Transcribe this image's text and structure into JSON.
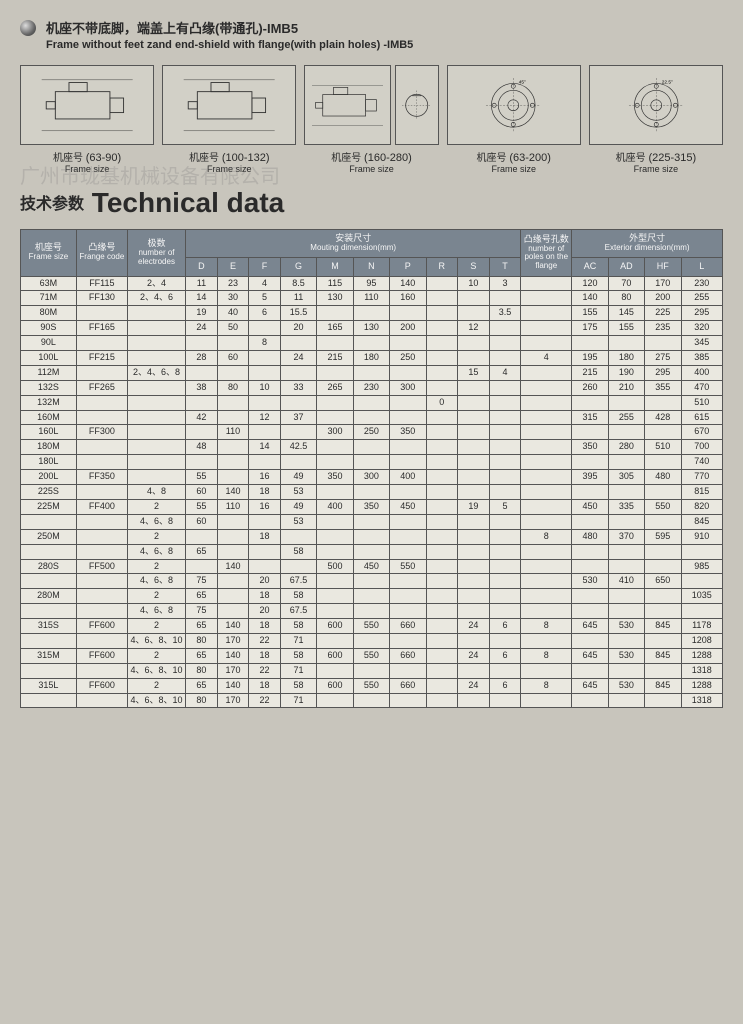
{
  "header": {
    "title_cn": "机座不带底脚，端盖上有凸缘(带通孔)-IMB5",
    "title_en": "Frame without feet zand end-shield with flange(with plain holes) -IMB5"
  },
  "diagrams": [
    {
      "label_cn": "机座号",
      "label_en": "Frame size",
      "range": "(63-90)",
      "type": "motor"
    },
    {
      "label_cn": "机座号",
      "label_en": "Frame size",
      "range": "(100-132)",
      "type": "motor"
    },
    {
      "label_cn": "机座号",
      "label_en": "Frame size",
      "range": "(160-280)",
      "type": "motor"
    },
    {
      "label_cn": "机座号",
      "label_en": "Frame size",
      "range": "(63-200)",
      "type": "flange",
      "angle": "45°"
    },
    {
      "label_cn": "机座号",
      "label_en": "Frame size",
      "range": "(225-315)",
      "type": "flange",
      "angle": "22.5°"
    }
  ],
  "tech_title_cn": "技术参数",
  "tech_title_en": "Technical data",
  "watermark": "广州市珑基机械设备有限公司",
  "table": {
    "header_groups": [
      {
        "cn": "机座号",
        "en": "Frame size"
      },
      {
        "cn": "凸缘号",
        "en": "Frange code"
      },
      {
        "cn": "极数",
        "en": "number of electrodes"
      },
      {
        "cn": "安装尺寸",
        "en": "Mouting dimension(mm)",
        "sub": [
          "D",
          "E",
          "F",
          "G",
          "M",
          "N",
          "P",
          "R",
          "S",
          "T"
        ]
      },
      {
        "cn": "凸缘号孔数",
        "en": "number of poles on the flange"
      },
      {
        "cn": "外型尺寸",
        "en": "Exterior dimension(mm)",
        "sub": [
          "AC",
          "AD",
          "HF",
          "L"
        ]
      }
    ],
    "cols": {
      "frame": 46,
      "frange": 42,
      "poles": 48,
      "D": 26,
      "E": 26,
      "F": 26,
      "G": 30,
      "M": 30,
      "N": 30,
      "P": 30,
      "R": 26,
      "S": 26,
      "T": 26,
      "flange_poles": 42,
      "AC": 30,
      "AD": 30,
      "HF": 30,
      "L": 34
    },
    "rows": [
      {
        "fs": "63M",
        "fc": "FF115",
        "pl": "2、4",
        "D": "11",
        "E": "23",
        "F": "4",
        "G": "8.5",
        "M": "115",
        "N": "95",
        "P": "140",
        "R": "",
        "S": "10",
        "T": "3",
        "fp": "",
        "AC": "120",
        "AD": "70",
        "HF": "170",
        "L": "230"
      },
      {
        "fs": "71M",
        "fc": "FF130",
        "pl": "2、4、6",
        "D": "14",
        "E": "30",
        "F": "5",
        "G": "11",
        "M": "130",
        "N": "110",
        "P": "160",
        "R": "",
        "S": "",
        "T": "",
        "fp": "",
        "AC": "140",
        "AD": "80",
        "HF": "200",
        "L": "255"
      },
      {
        "fs": "80M",
        "fc": "",
        "pl": "",
        "D": "19",
        "E": "40",
        "F": "6",
        "G": "15.5",
        "M": "",
        "N": "",
        "P": "",
        "R": "",
        "S": "",
        "T": "3.5",
        "fp": "",
        "AC": "155",
        "AD": "145",
        "HF": "225",
        "L": "295"
      },
      {
        "fs": "90S",
        "fc": "FF165",
        "pl": "",
        "D": "24",
        "E": "50",
        "F": "",
        "G": "20",
        "M": "165",
        "N": "130",
        "P": "200",
        "R": "",
        "S": "12",
        "T": "",
        "fp": "",
        "AC": "175",
        "AD": "155",
        "HF": "235",
        "L": "320"
      },
      {
        "fs": "90L",
        "fc": "",
        "pl": "",
        "D": "",
        "E": "",
        "F": "8",
        "G": "",
        "M": "",
        "N": "",
        "P": "",
        "R": "",
        "S": "",
        "T": "",
        "fp": "",
        "AC": "",
        "AD": "",
        "HF": "",
        "L": "345"
      },
      {
        "fs": "100L",
        "fc": "FF215",
        "pl": "",
        "D": "28",
        "E": "60",
        "F": "",
        "G": "24",
        "M": "215",
        "N": "180",
        "P": "250",
        "R": "",
        "S": "",
        "T": "",
        "fp": "4",
        "AC": "195",
        "AD": "180",
        "HF": "275",
        "L": "385"
      },
      {
        "fs": "112M",
        "fc": "",
        "pl": "2、4、6、8",
        "D": "",
        "E": "",
        "F": "",
        "G": "",
        "M": "",
        "N": "",
        "P": "",
        "R": "",
        "S": "15",
        "T": "4",
        "fp": "",
        "AC": "215",
        "AD": "190",
        "HF": "295",
        "L": "400"
      },
      {
        "fs": "132S",
        "fc": "FF265",
        "pl": "",
        "D": "38",
        "E": "80",
        "F": "10",
        "G": "33",
        "M": "265",
        "N": "230",
        "P": "300",
        "R": "",
        "S": "",
        "T": "",
        "fp": "",
        "AC": "260",
        "AD": "210",
        "HF": "355",
        "L": "470"
      },
      {
        "fs": "132M",
        "fc": "",
        "pl": "",
        "D": "",
        "E": "",
        "F": "",
        "G": "",
        "M": "",
        "N": "",
        "P": "",
        "R": "0",
        "S": "",
        "T": "",
        "fp": "",
        "AC": "",
        "AD": "",
        "HF": "",
        "L": "510"
      },
      {
        "fs": "160M",
        "fc": "",
        "pl": "",
        "D": "42",
        "E": "",
        "F": "12",
        "G": "37",
        "M": "",
        "N": "",
        "P": "",
        "R": "",
        "S": "",
        "T": "",
        "fp": "",
        "AC": "315",
        "AD": "255",
        "HF": "428",
        "L": "615"
      },
      {
        "fs": "160L",
        "fc": "FF300",
        "pl": "",
        "D": "",
        "E": "110",
        "F": "",
        "G": "",
        "M": "300",
        "N": "250",
        "P": "350",
        "R": "",
        "S": "",
        "T": "",
        "fp": "",
        "AC": "",
        "AD": "",
        "HF": "",
        "L": "670"
      },
      {
        "fs": "180M",
        "fc": "",
        "pl": "",
        "D": "48",
        "E": "",
        "F": "14",
        "G": "42.5",
        "M": "",
        "N": "",
        "P": "",
        "R": "",
        "S": "",
        "T": "",
        "fp": "",
        "AC": "350",
        "AD": "280",
        "HF": "510",
        "L": "700"
      },
      {
        "fs": "180L",
        "fc": "",
        "pl": "",
        "D": "",
        "E": "",
        "F": "",
        "G": "",
        "M": "",
        "N": "",
        "P": "",
        "R": "",
        "S": "",
        "T": "",
        "fp": "",
        "AC": "",
        "AD": "",
        "HF": "",
        "L": "740"
      },
      {
        "fs": "200L",
        "fc": "FF350",
        "pl": "",
        "D": "55",
        "E": "",
        "F": "16",
        "G": "49",
        "M": "350",
        "N": "300",
        "P": "400",
        "R": "",
        "S": "",
        "T": "",
        "fp": "",
        "AC": "395",
        "AD": "305",
        "HF": "480",
        "L": "770"
      },
      {
        "fs": "225S",
        "fc": "",
        "pl": "4、8",
        "D": "60",
        "E": "140",
        "F": "18",
        "G": "53",
        "M": "",
        "N": "",
        "P": "",
        "R": "",
        "S": "",
        "T": "",
        "fp": "",
        "AC": "",
        "AD": "",
        "HF": "",
        "L": "815"
      },
      {
        "fs": "225M",
        "fc": "FF400",
        "pl": "2",
        "D": "55",
        "E": "110",
        "F": "16",
        "G": "49",
        "M": "400",
        "N": "350",
        "P": "450",
        "R": "",
        "S": "19",
        "T": "5",
        "fp": "",
        "AC": "450",
        "AD": "335",
        "HF": "550",
        "L": "820"
      },
      {
        "fs": "",
        "fc": "",
        "pl": "4、6、8",
        "D": "60",
        "E": "",
        "F": "",
        "G": "53",
        "M": "",
        "N": "",
        "P": "",
        "R": "",
        "S": "",
        "T": "",
        "fp": "",
        "AC": "",
        "AD": "",
        "HF": "",
        "L": "845"
      },
      {
        "fs": "250M",
        "fc": "",
        "pl": "2",
        "D": "",
        "E": "",
        "F": "18",
        "G": "",
        "M": "",
        "N": "",
        "P": "",
        "R": "",
        "S": "",
        "T": "",
        "fp": "8",
        "AC": "480",
        "AD": "370",
        "HF": "595",
        "L": "910"
      },
      {
        "fs": "",
        "fc": "",
        "pl": "4、6、8",
        "D": "65",
        "E": "",
        "F": "",
        "G": "58",
        "M": "",
        "N": "",
        "P": "",
        "R": "",
        "S": "",
        "T": "",
        "fp": "",
        "AC": "",
        "AD": "",
        "HF": "",
        "L": ""
      },
      {
        "fs": "280S",
        "fc": "FF500",
        "pl": "2",
        "D": "",
        "E": "140",
        "F": "",
        "G": "",
        "M": "500",
        "N": "450",
        "P": "550",
        "R": "",
        "S": "",
        "T": "",
        "fp": "",
        "AC": "",
        "AD": "",
        "HF": "",
        "L": "985"
      },
      {
        "fs": "",
        "fc": "",
        "pl": "4、6、8",
        "D": "75",
        "E": "",
        "F": "20",
        "G": "67.5",
        "M": "",
        "N": "",
        "P": "",
        "R": "",
        "S": "",
        "T": "",
        "fp": "",
        "AC": "530",
        "AD": "410",
        "HF": "650",
        "L": ""
      },
      {
        "fs": "280M",
        "fc": "",
        "pl": "2",
        "D": "65",
        "E": "",
        "F": "18",
        "G": "58",
        "M": "",
        "N": "",
        "P": "",
        "R": "",
        "S": "",
        "T": "",
        "fp": "",
        "AC": "",
        "AD": "",
        "HF": "",
        "L": "1035"
      },
      {
        "fs": "",
        "fc": "",
        "pl": "4、6、8",
        "D": "75",
        "E": "",
        "F": "20",
        "G": "67.5",
        "M": "",
        "N": "",
        "P": "",
        "R": "",
        "S": "",
        "T": "",
        "fp": "",
        "AC": "",
        "AD": "",
        "HF": "",
        "L": ""
      },
      {
        "fs": "315S",
        "fc": "FF600",
        "pl": "2",
        "D": "65",
        "E": "140",
        "F": "18",
        "G": "58",
        "M": "600",
        "N": "550",
        "P": "660",
        "R": "",
        "S": "24",
        "T": "6",
        "fp": "8",
        "AC": "645",
        "AD": "530",
        "HF": "845",
        "L": "1178"
      },
      {
        "fs": "",
        "fc": "",
        "pl": "4、6、8、10",
        "D": "80",
        "E": "170",
        "F": "22",
        "G": "71",
        "M": "",
        "N": "",
        "P": "",
        "R": "",
        "S": "",
        "T": "",
        "fp": "",
        "AC": "",
        "AD": "",
        "HF": "",
        "L": "1208"
      },
      {
        "fs": "315M",
        "fc": "FF600",
        "pl": "2",
        "D": "65",
        "E": "140",
        "F": "18",
        "G": "58",
        "M": "600",
        "N": "550",
        "P": "660",
        "R": "",
        "S": "24",
        "T": "6",
        "fp": "8",
        "AC": "645",
        "AD": "530",
        "HF": "845",
        "L": "1288"
      },
      {
        "fs": "",
        "fc": "",
        "pl": "4、6、8、10",
        "D": "80",
        "E": "170",
        "F": "22",
        "G": "71",
        "M": "",
        "N": "",
        "P": "",
        "R": "",
        "S": "",
        "T": "",
        "fp": "",
        "AC": "",
        "AD": "",
        "HF": "",
        "L": "1318"
      },
      {
        "fs": "315L",
        "fc": "FF600",
        "pl": "2",
        "D": "65",
        "E": "140",
        "F": "18",
        "G": "58",
        "M": "600",
        "N": "550",
        "P": "660",
        "R": "",
        "S": "24",
        "T": "6",
        "fp": "8",
        "AC": "645",
        "AD": "530",
        "HF": "845",
        "L": "1288"
      },
      {
        "fs": "",
        "fc": "",
        "pl": "4、6、8、10",
        "D": "80",
        "E": "170",
        "F": "22",
        "G": "71",
        "M": "",
        "N": "",
        "P": "",
        "R": "",
        "S": "",
        "T": "",
        "fp": "",
        "AC": "",
        "AD": "",
        "HF": "",
        "L": "1318"
      }
    ]
  }
}
